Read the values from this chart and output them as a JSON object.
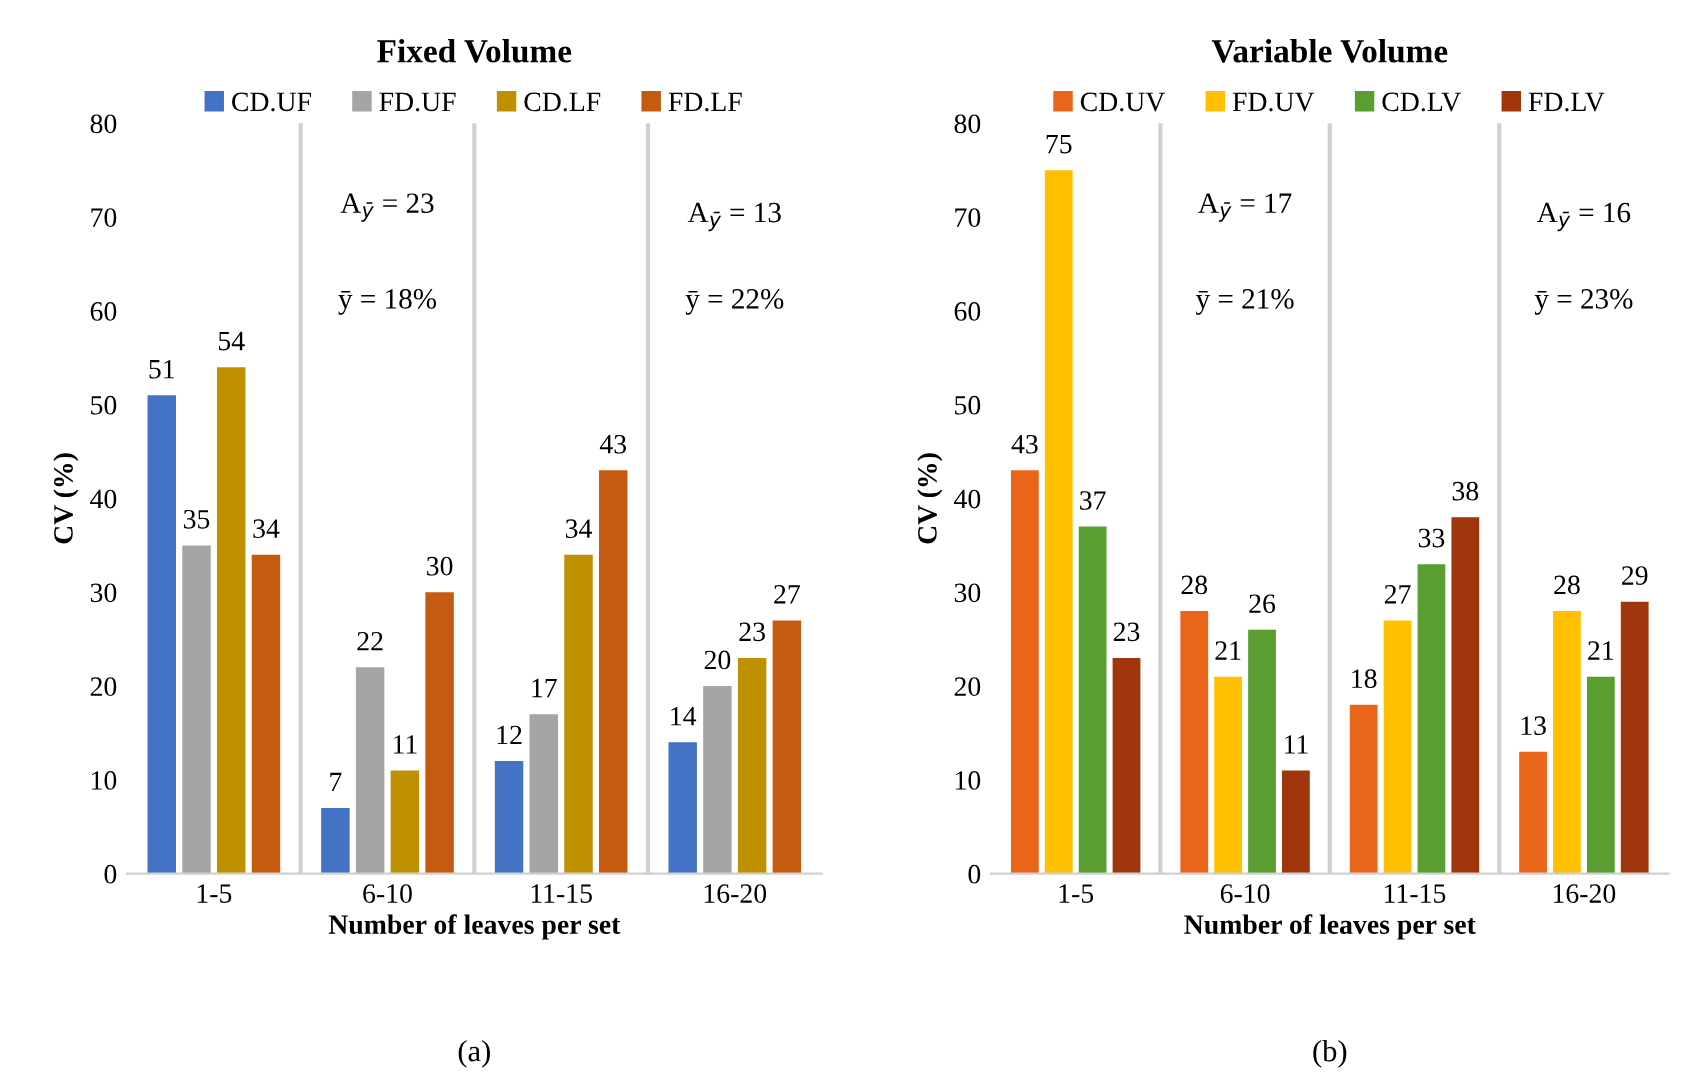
{
  "chart_data": [
    {
      "type": "bar",
      "title": "Fixed Volume",
      "xlabel": "Number of leaves per set",
      "ylabel": "CV (%)",
      "categories": [
        "1-5",
        "6-10",
        "11-15",
        "16-20"
      ],
      "series": [
        {
          "name": "CD.UF",
          "color": "#4472c4",
          "values": [
            51,
            7,
            12,
            14
          ]
        },
        {
          "name": "FD.UF",
          "color": "#a5a5a5",
          "values": [
            35,
            22,
            17,
            20
          ]
        },
        {
          "name": "CD.LF",
          "color": "#bf9000",
          "values": [
            54,
            11,
            34,
            23
          ]
        },
        {
          "name": "FD.LF",
          "color": "#c55a11",
          "values": [
            34,
            30,
            43,
            27
          ]
        }
      ],
      "ylim": [
        0,
        80
      ],
      "yticks": [
        0,
        10,
        20,
        30,
        40,
        50,
        60,
        70,
        80
      ],
      "grid": "x",
      "legend": "top",
      "data_labels": true,
      "annotations": [
        "A$_{ȳ}$ = 23",
        "ȳ = 18%",
        "A$_{ȳ}$ = 13",
        "ȳ = 22%",
        "(a)"
      ]
    },
    {
      "type": "bar",
      "title": "Variable Volume",
      "xlabel": "Number of leaves per set",
      "ylabel": "CV (%)",
      "categories": [
        "1-5",
        "6-10",
        "11-15",
        "16-20"
      ],
      "series": [
        {
          "name": "CD.UV",
          "color": "#e8651a",
          "values": [
            43,
            28,
            18,
            13
          ]
        },
        {
          "name": "FD.UV",
          "color": "#ffc000",
          "values": [
            75,
            21,
            27,
            28
          ]
        },
        {
          "name": "CD.LV",
          "color": "#5a9e32",
          "values": [
            37,
            26,
            33,
            21
          ]
        },
        {
          "name": "FD.LV",
          "color": "#a0360b",
          "values": [
            23,
            11,
            38,
            29
          ]
        }
      ],
      "ylim": [
        0,
        80
      ],
      "yticks": [
        0,
        10,
        20,
        30,
        40,
        50,
        60,
        70,
        80
      ],
      "grid": "x",
      "legend": "top",
      "data_labels": true,
      "annotations": [
        "A$_{ȳ}$ = 17",
        "ȳ = 21%",
        "A$_{ȳ}$ = 16",
        "ȳ = 23%",
        "(b)"
      ]
    }
  ]
}
